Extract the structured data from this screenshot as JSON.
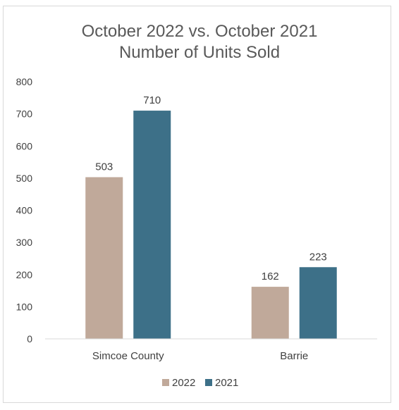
{
  "chart_data": {
    "type": "bar",
    "title_lines": [
      "October 2022 vs. October 2021",
      "Number of Units Sold"
    ],
    "categories": [
      "Simcoe County",
      "Barrie"
    ],
    "series": [
      {
        "name": "2022",
        "values": [
          503,
          162
        ],
        "color": "#c0a99a"
      },
      {
        "name": "2021",
        "values": [
          710,
          223
        ],
        "color": "#3d7088"
      }
    ],
    "ylim": [
      0,
      800
    ],
    "yticks": [
      0,
      100,
      200,
      300,
      400,
      500,
      600,
      700,
      800
    ],
    "grid": false,
    "legend_position": "bottom-center",
    "axis_color": "#d9d9d9"
  }
}
